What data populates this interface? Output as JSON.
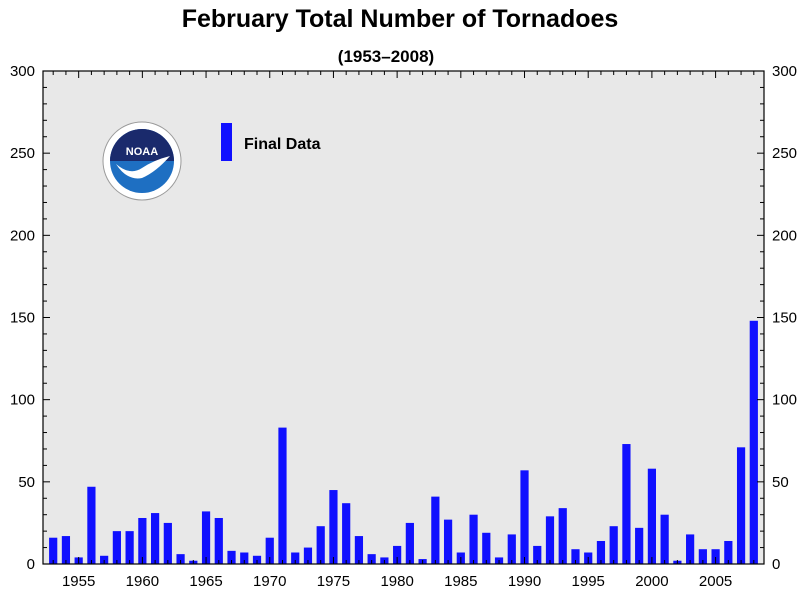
{
  "chart_data": {
    "type": "bar",
    "title": "February Total Number of Tornadoes",
    "subtitle": "(1953–2008)",
    "xlabel": "",
    "ylabel": "",
    "x": [
      1953,
      1954,
      1955,
      1956,
      1957,
      1958,
      1959,
      1960,
      1961,
      1962,
      1963,
      1964,
      1965,
      1966,
      1967,
      1968,
      1969,
      1970,
      1971,
      1972,
      1973,
      1974,
      1975,
      1976,
      1977,
      1978,
      1979,
      1980,
      1981,
      1982,
      1983,
      1984,
      1985,
      1986,
      1987,
      1988,
      1989,
      1990,
      1991,
      1992,
      1993,
      1994,
      1995,
      1996,
      1997,
      1998,
      1999,
      2000,
      2001,
      2002,
      2003,
      2004,
      2005,
      2006,
      2007,
      2008
    ],
    "series": [
      {
        "name": "Final Data",
        "values": [
          16,
          17,
          4,
          47,
          5,
          20,
          20,
          28,
          31,
          25,
          6,
          2,
          32,
          28,
          8,
          7,
          5,
          16,
          83,
          7,
          10,
          23,
          45,
          37,
          17,
          6,
          4,
          11,
          25,
          3,
          41,
          27,
          7,
          30,
          19,
          4,
          18,
          57,
          11,
          29,
          34,
          9,
          7,
          14,
          23,
          73,
          22,
          58,
          30,
          2,
          18,
          9,
          9,
          14,
          71,
          148
        ]
      }
    ],
    "x_ticks": [
      "1955",
      "1960",
      "1965",
      "1970",
      "1975",
      "1980",
      "1985",
      "1990",
      "1995",
      "2000",
      "2005"
    ],
    "y_ticks": [
      "0",
      "50",
      "100",
      "150",
      "200",
      "250",
      "300"
    ],
    "ylim": [
      0,
      300
    ],
    "xlim": [
      1952.2,
      2008.8
    ],
    "grid": false,
    "legend_placement": "top-left",
    "colors": {
      "bar": "#1010ff",
      "plot_background": "#e8e8e8",
      "axis": "#000000",
      "logo_navy": "#1a2a6c",
      "logo_blue": "#1e6fc2"
    },
    "logo": {
      "name": "noaa-logo",
      "text": "NOAA"
    }
  }
}
